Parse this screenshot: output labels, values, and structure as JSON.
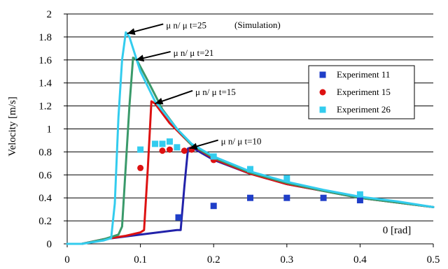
{
  "chart_data": {
    "type": "line",
    "ylabel": "Velocity [m/s]",
    "x_annotation": "0 [rad]",
    "title_note": "(Simulation)",
    "xlim": [
      0,
      0.5
    ],
    "ylim": [
      0,
      2
    ],
    "x_ticks": [
      "0",
      "0.1",
      "0.2",
      "0.3",
      "0.4",
      "0.5"
    ],
    "x_tick_values": [
      0,
      0.1,
      0.2,
      0.3,
      0.4,
      0.5
    ],
    "y_ticks": [
      "0",
      "0.2",
      "0.4",
      "0.6",
      "0.8",
      "1",
      "1.2",
      "1.4",
      "1.6",
      "1.8",
      "2"
    ],
    "y_tick_values": [
      0,
      0.2,
      0.4,
      0.6,
      0.8,
      1.0,
      1.2,
      1.4,
      1.6,
      1.8,
      2.0
    ],
    "grid": "horizontal",
    "legend_position": "right",
    "simulation_series": [
      {
        "label": "μ n/ μ t=10",
        "color": "#2222aa",
        "points": [
          [
            0,
            0
          ],
          [
            0.02,
            0
          ],
          [
            0.05,
            0.04
          ],
          [
            0.1,
            0.08
          ],
          [
            0.15,
            0.12
          ],
          [
            0.155,
            0.12
          ],
          [
            0.16,
            0.5
          ],
          [
            0.165,
            0.83
          ],
          [
            0.17,
            0.84
          ],
          [
            0.2,
            0.73
          ],
          [
            0.25,
            0.61
          ],
          [
            0.3,
            0.52
          ],
          [
            0.35,
            0.46
          ],
          [
            0.4,
            0.4
          ],
          [
            0.45,
            0.36
          ],
          [
            0.5,
            0.32
          ]
        ],
        "annotation": {
          "at": [
            0.165,
            0.83
          ],
          "text_at": [
            0.21,
            0.89
          ]
        }
      },
      {
        "label": "μ n/ μ t=15",
        "color": "#dd1111",
        "points": [
          [
            0,
            0
          ],
          [
            0.02,
            0
          ],
          [
            0.05,
            0.04
          ],
          [
            0.08,
            0.07
          ],
          [
            0.1,
            0.1
          ],
          [
            0.105,
            0.12
          ],
          [
            0.11,
            0.65
          ],
          [
            0.115,
            1.24
          ],
          [
            0.12,
            1.22
          ],
          [
            0.14,
            1.05
          ],
          [
            0.17,
            0.86
          ],
          [
            0.2,
            0.74
          ],
          [
            0.25,
            0.61
          ],
          [
            0.3,
            0.52
          ],
          [
            0.35,
            0.46
          ],
          [
            0.4,
            0.4
          ],
          [
            0.45,
            0.36
          ],
          [
            0.5,
            0.32
          ]
        ],
        "annotation": {
          "at": [
            0.118,
            1.22
          ],
          "text_at": [
            0.175,
            1.32
          ]
        }
      },
      {
        "label": "μ n/ μ t=21",
        "color": "#3a9a6a",
        "points": [
          [
            0,
            0
          ],
          [
            0.02,
            0
          ],
          [
            0.05,
            0.04
          ],
          [
            0.07,
            0.08
          ],
          [
            0.075,
            0.15
          ],
          [
            0.085,
            1.2
          ],
          [
            0.09,
            1.62
          ],
          [
            0.095,
            1.6
          ],
          [
            0.11,
            1.42
          ],
          [
            0.13,
            1.17
          ],
          [
            0.15,
            1.0
          ],
          [
            0.17,
            0.86
          ],
          [
            0.2,
            0.75
          ],
          [
            0.25,
            0.62
          ],
          [
            0.3,
            0.53
          ],
          [
            0.35,
            0.46
          ],
          [
            0.4,
            0.4
          ],
          [
            0.45,
            0.36
          ],
          [
            0.5,
            0.32
          ]
        ],
        "annotation": {
          "at": [
            0.092,
            1.6
          ],
          "text_at": [
            0.145,
            1.66
          ]
        }
      },
      {
        "label": "μ n/ μ t=25",
        "color": "#33ccee",
        "points": [
          [
            0,
            0
          ],
          [
            0.02,
            0
          ],
          [
            0.05,
            0.03
          ],
          [
            0.06,
            0.05
          ],
          [
            0.065,
            0.35
          ],
          [
            0.07,
            1.1
          ],
          [
            0.075,
            1.6
          ],
          [
            0.08,
            1.84
          ],
          [
            0.085,
            1.8
          ],
          [
            0.1,
            1.5
          ],
          [
            0.12,
            1.24
          ],
          [
            0.15,
            1.0
          ],
          [
            0.17,
            0.87
          ],
          [
            0.2,
            0.76
          ],
          [
            0.25,
            0.63
          ],
          [
            0.3,
            0.54
          ],
          [
            0.35,
            0.47
          ],
          [
            0.4,
            0.41
          ],
          [
            0.45,
            0.37
          ],
          [
            0.5,
            0.32
          ]
        ],
        "annotation": {
          "at": [
            0.08,
            1.83
          ],
          "text_at": [
            0.135,
            1.9
          ]
        }
      }
    ],
    "experiment_series": [
      {
        "name": "Experiment 11",
        "marker": "square",
        "color": "#1f3ec8",
        "points": [
          [
            0.152,
            0.23
          ],
          [
            0.2,
            0.33
          ],
          [
            0.25,
            0.4
          ],
          [
            0.3,
            0.4
          ],
          [
            0.35,
            0.4
          ],
          [
            0.4,
            0.38
          ]
        ]
      },
      {
        "name": "Experiment 15",
        "marker": "circle",
        "color": "#dd1111",
        "points": [
          [
            0.1,
            0.66
          ],
          [
            0.13,
            0.81
          ],
          [
            0.14,
            0.82
          ],
          [
            0.16,
            0.81
          ],
          [
            0.17,
            0.82
          ],
          [
            0.2,
            0.73
          ]
        ]
      },
      {
        "name": "Experiment 26",
        "marker": "square",
        "color": "#33ccee",
        "points": [
          [
            0.1,
            0.82
          ],
          [
            0.12,
            0.87
          ],
          [
            0.13,
            0.87
          ],
          [
            0.14,
            0.89
          ],
          [
            0.15,
            0.84
          ],
          [
            0.2,
            0.76
          ],
          [
            0.25,
            0.65
          ],
          [
            0.3,
            0.57
          ],
          [
            0.4,
            0.43
          ]
        ]
      }
    ]
  }
}
